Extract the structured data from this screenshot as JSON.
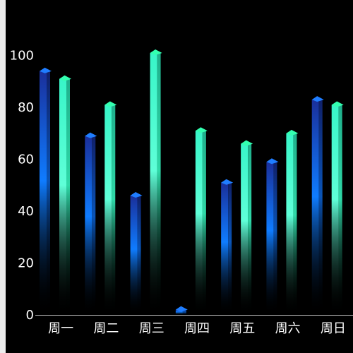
{
  "chart_data": {
    "type": "bar",
    "style": "3d-bar",
    "categories": [
      "周一",
      "周二",
      "周三",
      "周四",
      "周五",
      "周六",
      "周日"
    ],
    "series": [
      {
        "values": [
          94,
          69,
          46,
          2,
          51,
          59,
          83
        ],
        "color": "#1e6fff"
      },
      {
        "values": [
          91,
          81,
          101,
          71,
          66,
          70,
          81
        ],
        "color": "#33ffcc"
      }
    ],
    "yticks": [
      "0",
      "20",
      "40",
      "60",
      "80",
      "100"
    ],
    "ylim": [
      0,
      110
    ],
    "grid": false,
    "background": "#000000",
    "text_color": "#ffffff"
  }
}
